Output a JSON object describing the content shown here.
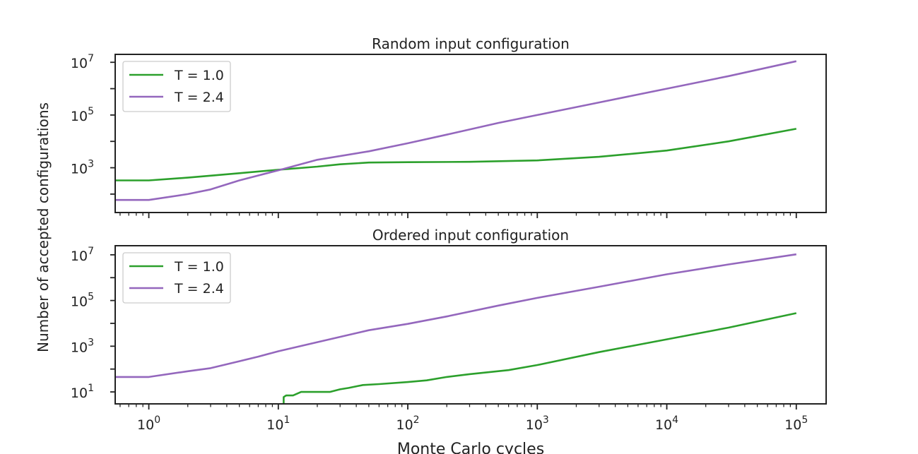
{
  "figure": {
    "ylabel": "Number of accepted configurations",
    "xlabel": "Monte Carlo cycles"
  },
  "colors": {
    "T1": "#2ca02c",
    "T24": "#9467bd",
    "axis": "#222222"
  },
  "chart_data": [
    {
      "type": "line",
      "title": "Random input configuration",
      "xscale": "log",
      "yscale": "log",
      "xlim": [
        0.55,
        170000
      ],
      "ylim": [
        20,
        20000000
      ],
      "xticks": [
        {
          "value": 1,
          "base": "10",
          "exp": "0"
        },
        {
          "value": 10,
          "base": "10",
          "exp": "1"
        },
        {
          "value": 100,
          "base": "10",
          "exp": "2"
        },
        {
          "value": 1000,
          "base": "10",
          "exp": "3"
        },
        {
          "value": 10000,
          "base": "10",
          "exp": "4"
        },
        {
          "value": 100000,
          "base": "10",
          "exp": "5"
        }
      ],
      "yticks": [
        {
          "value": 1000,
          "base": "10",
          "exp": "3"
        },
        {
          "value": 100000,
          "base": "10",
          "exp": "5"
        },
        {
          "value": 10000000,
          "base": "10",
          "exp": "7"
        }
      ],
      "show_xticklabels": false,
      "legend": "top-left",
      "series": [
        {
          "name": "T = 1.0",
          "color_key": "T1",
          "x": [
            0.55,
            1,
            2,
            3,
            5,
            10,
            20,
            30,
            50,
            100,
            300,
            1000,
            3000,
            10000,
            30000,
            100000
          ],
          "y": [
            330,
            330,
            420,
            500,
            620,
            840,
            1100,
            1350,
            1580,
            1620,
            1680,
            1900,
            2600,
            4500,
            10000,
            30000
          ]
        },
        {
          "name": "T = 2.4",
          "color_key": "T24",
          "x": [
            0.55,
            1,
            2,
            3,
            5,
            10,
            20,
            50,
            100,
            200,
            500,
            1000,
            3000,
            10000,
            30000,
            100000
          ],
          "y": [
            60,
            60,
            100,
            150,
            330,
            800,
            2000,
            4200,
            8500,
            18000,
            50000,
            100000,
            300000,
            1000000,
            3000000,
            11000000
          ]
        }
      ]
    },
    {
      "type": "line",
      "title": "Ordered input configuration",
      "xscale": "log",
      "yscale": "log",
      "xlim": [
        0.55,
        170000
      ],
      "ylim": [
        3,
        25000000
      ],
      "xticks": [
        {
          "value": 1,
          "base": "10",
          "exp": "0"
        },
        {
          "value": 10,
          "base": "10",
          "exp": "1"
        },
        {
          "value": 100,
          "base": "10",
          "exp": "2"
        },
        {
          "value": 1000,
          "base": "10",
          "exp": "3"
        },
        {
          "value": 10000,
          "base": "10",
          "exp": "4"
        },
        {
          "value": 100000,
          "base": "10",
          "exp": "5"
        }
      ],
      "yticks": [
        {
          "value": 10,
          "base": "10",
          "exp": "1"
        },
        {
          "value": 1000,
          "base": "10",
          "exp": "3"
        },
        {
          "value": 100000,
          "base": "10",
          "exp": "5"
        },
        {
          "value": 10000000,
          "base": "10",
          "exp": "7"
        }
      ],
      "show_xticklabels": true,
      "legend": "top-left",
      "series": [
        {
          "name": "T = 1.0",
          "color_key": "T1",
          "x": [
            11,
            11,
            11.5,
            13,
            15,
            25,
            30,
            35,
            45,
            60,
            100,
            140,
            200,
            300,
            600,
            1000,
            3000,
            10000,
            30000,
            100000
          ],
          "y": [
            3,
            6,
            7,
            7,
            10,
            10,
            13,
            15,
            20,
            22,
            27,
            32,
            45,
            60,
            90,
            150,
            550,
            2000,
            6500,
            28000
          ]
        },
        {
          "name": "T = 2.4",
          "color_key": "T24",
          "x": [
            0.55,
            1,
            2,
            3,
            5,
            7,
            10,
            20,
            50,
            100,
            200,
            500,
            1000,
            3000,
            10000,
            30000,
            100000
          ],
          "y": [
            45,
            45,
            80,
            110,
            220,
            350,
            600,
            1500,
            5000,
            9500,
            20000,
            60000,
            130000,
            400000,
            1400000,
            3800000,
            10500000
          ]
        }
      ]
    }
  ]
}
